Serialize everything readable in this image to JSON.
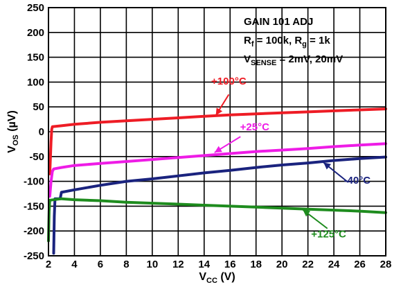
{
  "chart_data": {
    "type": "line",
    "xlabel": {
      "main": "V",
      "sub": "CC",
      "unit": " (V)"
    },
    "ylabel": {
      "main": "V",
      "sub": "OS",
      "unit": " (µV)"
    },
    "xlim": [
      2,
      28
    ],
    "ylim": [
      -250,
      250
    ],
    "x_ticks": [
      2,
      4,
      6,
      8,
      10,
      12,
      14,
      16,
      18,
      20,
      22,
      24,
      26,
      28
    ],
    "y_ticks": [
      250,
      200,
      150,
      100,
      50,
      0,
      -50,
      -100,
      -150,
      -200,
      -250
    ],
    "grid": true,
    "annotation": {
      "line1": "GAIN 101 ADJ",
      "line2_parts": [
        "R",
        "f",
        " = 100k, R",
        "g",
        " = 1k"
      ],
      "line3_parts": [
        "V",
        "SENSE",
        " = 2mV, 20mV"
      ]
    },
    "series": [
      {
        "name": "+100°C",
        "color": "#ee1c25",
        "points": [
          [
            2.1,
            -85
          ],
          [
            2.2,
            -20
          ],
          [
            2.25,
            5
          ],
          [
            2.3,
            10
          ],
          [
            3,
            12
          ],
          [
            4,
            15
          ],
          [
            6,
            19
          ],
          [
            8,
            22
          ],
          [
            10,
            25
          ],
          [
            12,
            28
          ],
          [
            14,
            31
          ],
          [
            16,
            34
          ],
          [
            18,
            36
          ],
          [
            20,
            38
          ],
          [
            22,
            40
          ],
          [
            24,
            42
          ],
          [
            26,
            44
          ],
          [
            28,
            46
          ]
        ]
      },
      {
        "name": "+25°C",
        "color": "#ee1ce6",
        "points": [
          [
            2.1,
            -130
          ],
          [
            2.2,
            -100
          ],
          [
            2.3,
            -80
          ],
          [
            2.4,
            -75
          ],
          [
            3,
            -72
          ],
          [
            4,
            -68
          ],
          [
            6,
            -64
          ],
          [
            8,
            -60
          ],
          [
            10,
            -56
          ],
          [
            12,
            -52
          ],
          [
            14,
            -48
          ],
          [
            16,
            -44
          ],
          [
            18,
            -40
          ],
          [
            20,
            -37
          ],
          [
            22,
            -34
          ],
          [
            24,
            -30
          ],
          [
            26,
            -27
          ],
          [
            28,
            -24
          ]
        ]
      },
      {
        "name": "-40°C",
        "color": "#1a237e",
        "points": [
          [
            2.4,
            -245
          ],
          [
            2.45,
            -170
          ],
          [
            2.5,
            -135
          ],
          [
            2.9,
            -135
          ],
          [
            3,
            -122
          ],
          [
            4,
            -117
          ],
          [
            6,
            -108
          ],
          [
            8,
            -100
          ],
          [
            10,
            -95
          ],
          [
            12,
            -89
          ],
          [
            14,
            -83
          ],
          [
            16,
            -78
          ],
          [
            18,
            -72
          ],
          [
            20,
            -67
          ],
          [
            22,
            -63
          ],
          [
            24,
            -58
          ],
          [
            26,
            -54
          ],
          [
            28,
            -51
          ]
        ]
      },
      {
        "name": "+125°C",
        "color": "#1e8c1e",
        "points": [
          [
            2.0,
            -220
          ],
          [
            2.05,
            -160
          ],
          [
            2.1,
            -138
          ],
          [
            3,
            -135
          ],
          [
            4,
            -137
          ],
          [
            6,
            -139
          ],
          [
            8,
            -142
          ],
          [
            10,
            -144
          ],
          [
            12,
            -146
          ],
          [
            14,
            -148
          ],
          [
            16,
            -150
          ],
          [
            18,
            -152
          ],
          [
            20,
            -154
          ],
          [
            22,
            -156
          ],
          [
            24,
            -158
          ],
          [
            26,
            -160
          ],
          [
            28,
            -163
          ]
        ]
      }
    ],
    "series_labels": [
      {
        "text": "+100°C",
        "series": 0,
        "text_at": [
          15.9,
          95
        ],
        "arrow_from": [
          15.9,
          75
        ],
        "arrow_to": [
          14.9,
          33
        ]
      },
      {
        "text": "+25°C",
        "series": 1,
        "text_at": [
          17.9,
          3
        ],
        "arrow_from": [
          16.8,
          -10
        ],
        "arrow_to": [
          14.8,
          -42
        ]
      },
      {
        "text": "-40°C",
        "series": 2,
        "text_at": [
          25.8,
          -105
        ],
        "arrow_from": [
          25.1,
          -102
        ],
        "arrow_to": [
          23.2,
          -62
        ]
      },
      {
        "text": "+125°C",
        "series": 3,
        "text_at": [
          23.6,
          -213
        ],
        "arrow_from": [
          23.5,
          -195
        ],
        "arrow_to": [
          21.6,
          -157
        ]
      }
    ]
  }
}
